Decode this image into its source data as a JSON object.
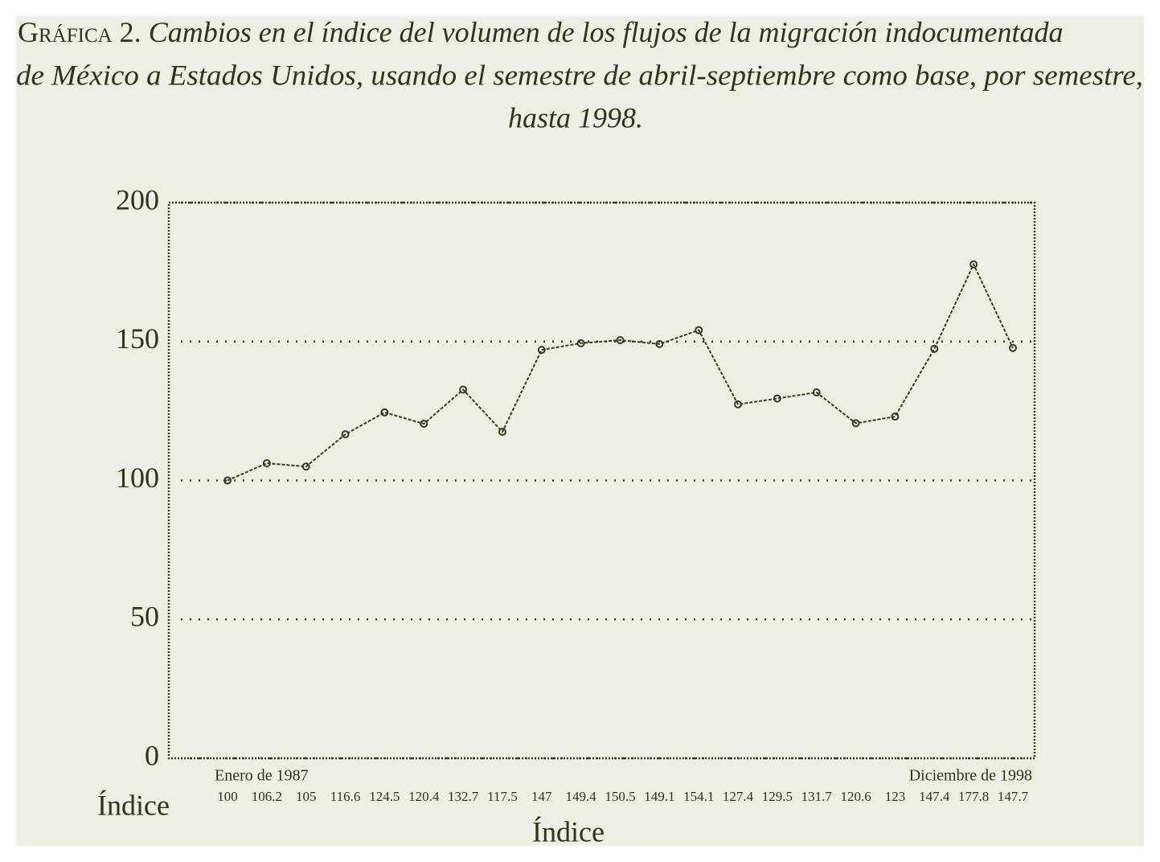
{
  "chart_data": {
    "type": "line",
    "title_label": "Gráfica 2.",
    "title": [
      "Cambios en el índice del volumen de los flujos de la migración indocumentada",
      "de México a Estados Unidos, usando el semestre de abril-septiembre como base, por semestre,",
      "hasta 1998."
    ],
    "categories": [
      "Enero de 1987",
      null,
      null,
      null,
      null,
      null,
      null,
      null,
      null,
      null,
      null,
      null,
      null,
      null,
      null,
      null,
      null,
      null,
      null,
      null,
      "Diciembre de 1998"
    ],
    "values": [
      100,
      106.2,
      105,
      116.6,
      124.5,
      120.4,
      132.7,
      117.5,
      147,
      149.4,
      150.5,
      149.1,
      154.1,
      127.4,
      129.5,
      131.7,
      120.6,
      123,
      147.4,
      177.8,
      147.7
    ],
    "values_row_label": "Índice",
    "x_label": "Índice",
    "color": "#3a3920",
    "ylim": [
      0,
      200
    ],
    "yticks": [
      0,
      50,
      100,
      150,
      200
    ],
    "grid": true
  }
}
